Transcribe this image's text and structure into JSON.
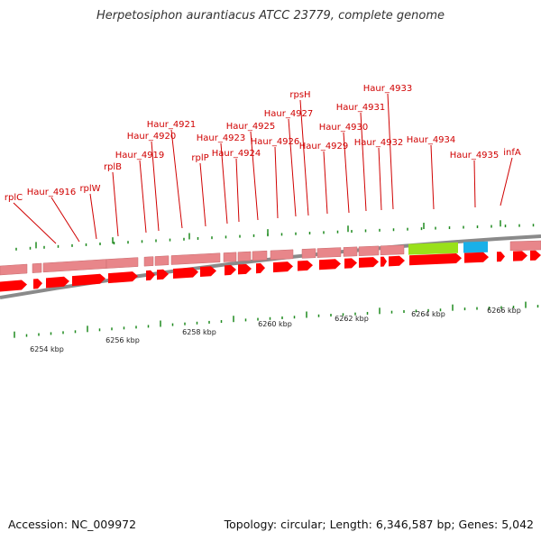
{
  "title": "Herpetosiphon aurantiacus ATCC 23779, complete genome",
  "footer": {
    "accession": "Accession: NC_009972",
    "topology": "Topology: circular; Length: 6,346,587 bp; Genes: 5,042"
  },
  "colors": {
    "label": "#d00000",
    "cds_arrow": "#ff0000",
    "gene_band": "#e8868a",
    "rrna_green": "#99e01a",
    "trna_blue": "#1ab0e8",
    "backbone": "#888888",
    "tick": "#1f8a1f"
  },
  "gene_labels": [
    "rplC",
    "Haur_4916",
    "rplW",
    "rplB",
    "Haur_4919",
    "Haur_4920",
    "Haur_4921",
    "rplP",
    "Haur_4923",
    "Haur_4924",
    "Haur_4925",
    "Haur_4926",
    "Haur_4927",
    "rpsH",
    "Haur_4929",
    "Haur_4930",
    "Haur_4931",
    "Haur_4932",
    "Haur_4933",
    "Haur_4934",
    "Haur_4935",
    "infA"
  ],
  "scale_labels": [
    "6254 kbp",
    "6256 kbp",
    "6258 kbp",
    "6260 kbp",
    "6262 kbp",
    "6264 kbp",
    "6266 kbp"
  ]
}
